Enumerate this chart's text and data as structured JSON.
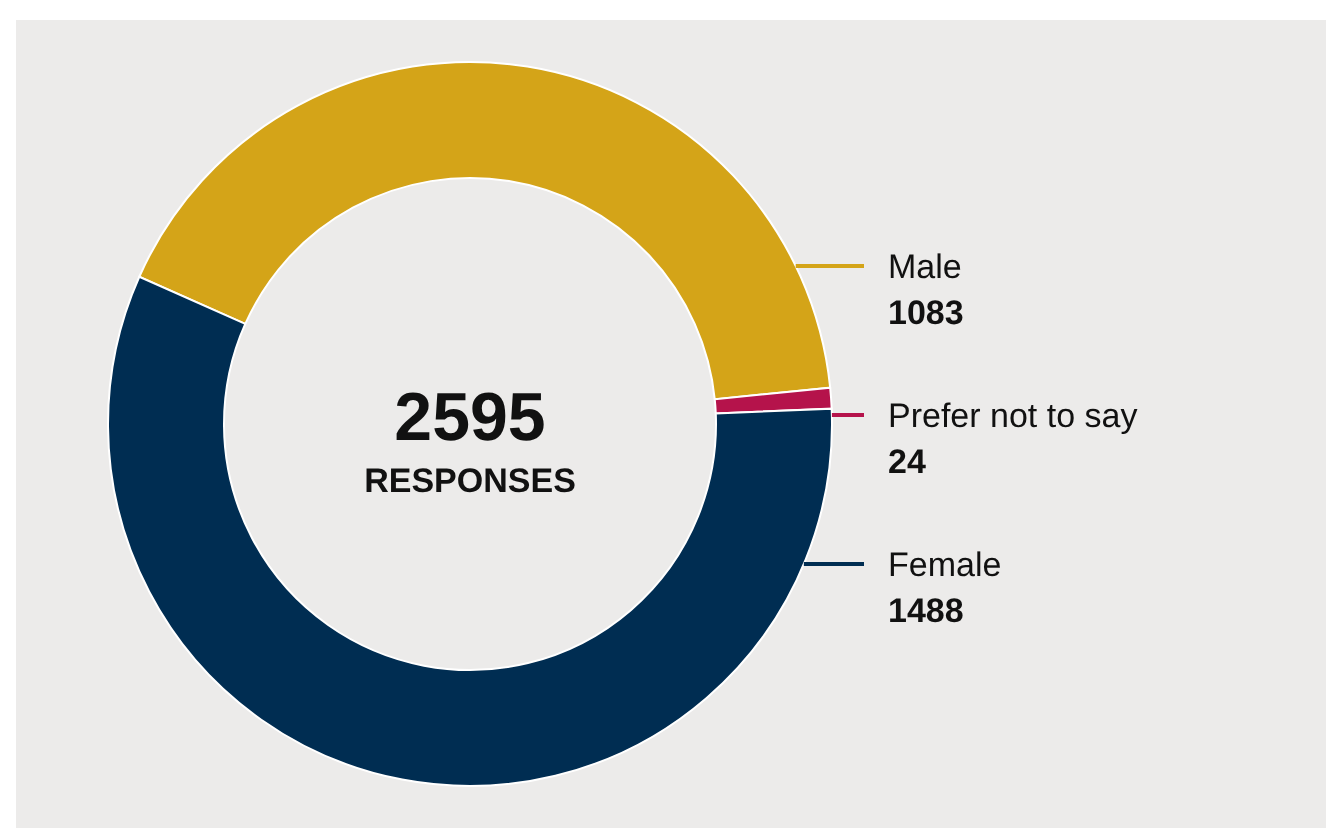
{
  "chart_data": {
    "type": "donut",
    "categories": [
      "Male",
      "Prefer not to say",
      "Female"
    ],
    "values": [
      1083,
      24,
      1488
    ],
    "colors": [
      "#d4a418",
      "#b5134b",
      "#002d52"
    ],
    "data_labels": true,
    "annotations": [
      "2595",
      "RESPONSES"
    ]
  }
}
